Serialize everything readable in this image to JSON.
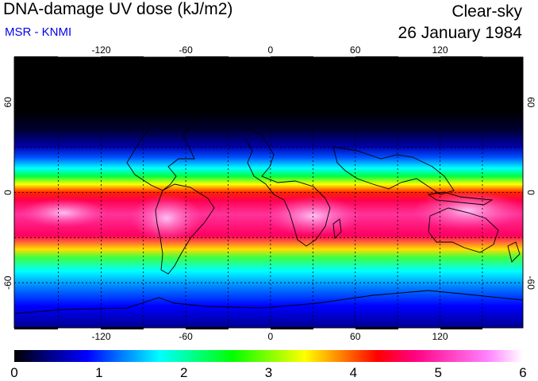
{
  "header": {
    "title": "DNA-damage UV dose (kJ/m2)",
    "subtitle": "MSR - KNMI",
    "sky_condition": "Clear-sky",
    "date": "26 January 1984"
  },
  "map": {
    "lon_ticks_top": [
      "-120",
      "-60",
      "0",
      "60",
      "120"
    ],
    "lon_ticks_bottom": [
      "-120",
      "-60",
      "0",
      "60",
      "120"
    ],
    "lat_ticks_left": [
      "60",
      "0",
      "-60"
    ],
    "lat_ticks_right": [
      "60",
      "0",
      "-60"
    ],
    "lon_range": [
      -180,
      180
    ],
    "lat_range": [
      -90,
      90
    ]
  },
  "colorbar": {
    "labels": [
      "0",
      "1",
      "2",
      "3",
      "4",
      "5",
      "6"
    ],
    "min": 0,
    "max": 6,
    "colors": [
      "#000000",
      "#00008b",
      "#0000ff",
      "#0080ff",
      "#00ffff",
      "#00ff80",
      "#00ff00",
      "#80ff00",
      "#ffff00",
      "#ff8000",
      "#ff0000",
      "#ff0080",
      "#ff40c0",
      "#ff80ff",
      "#ffffff"
    ]
  }
}
